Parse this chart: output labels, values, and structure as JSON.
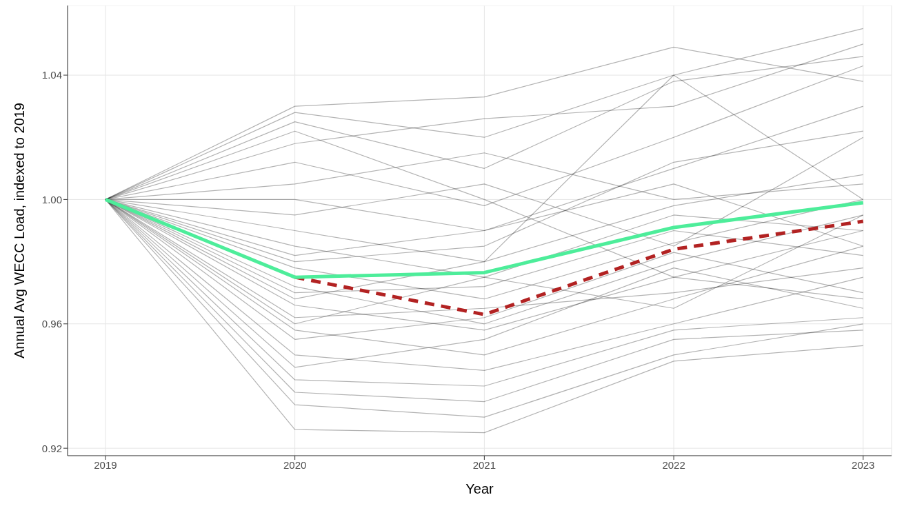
{
  "chart_data": {
    "type": "line",
    "xlabel": "Year",
    "ylabel": "Annual Avg WECC Load, indexed to 2019",
    "x": [
      2019,
      2020,
      2021,
      2022,
      2023
    ],
    "xlim": [
      2018.8,
      2023.15
    ],
    "xticks": [
      2019,
      2020,
      2021,
      2022,
      2023
    ],
    "ylim": [
      0.9176,
      1.0624
    ],
    "yticks": [
      {
        "value": 0.92,
        "label": "0.92"
      },
      {
        "value": 0.96,
        "label": "0.96"
      },
      {
        "value": 1.0,
        "label": "1.00"
      },
      {
        "value": 1.04,
        "label": "1.04"
      }
    ],
    "grid": true,
    "legend": false,
    "marker": "none",
    "series": [
      {
        "color": "#000000",
        "values": [
          1.0,
          1.03,
          1.033,
          1.049,
          1.038
        ]
      },
      {
        "color": "#000000",
        "values": [
          1.0,
          1.028,
          1.02,
          1.04,
          1.055
        ]
      },
      {
        "color": "#000000",
        "values": [
          1.0,
          1.025,
          1.01,
          1.038,
          1.046
        ]
      },
      {
        "color": "#000000",
        "values": [
          1.0,
          1.018,
          1.026,
          1.03,
          1.05
        ]
      },
      {
        "color": "#000000",
        "values": [
          1.0,
          1.012,
          0.998,
          1.02,
          1.043
        ]
      },
      {
        "color": "#000000",
        "values": [
          1.0,
          1.005,
          1.015,
          1.0,
          1.005
        ]
      },
      {
        "color": "#000000",
        "values": [
          1.0,
          1.0,
          0.99,
          1.01,
          1.03
        ]
      },
      {
        "color": "#000000",
        "values": [
          1.0,
          0.995,
          1.005,
          0.985,
          1.02
        ]
      },
      {
        "color": "#000000",
        "values": [
          1.0,
          0.99,
          0.98,
          0.998,
          1.008
        ]
      },
      {
        "color": "#000000",
        "values": [
          1.0,
          0.985,
          0.975,
          0.995,
          0.99
        ]
      },
      {
        "color": "#000000",
        "values": [
          1.0,
          0.982,
          0.99,
          1.005,
          0.985
        ]
      },
      {
        "color": "#000000",
        "values": [
          1.0,
          0.978,
          0.968,
          0.986,
          1.0
        ]
      },
      {
        "color": "#000000",
        "values": [
          1.0,
          0.972,
          0.96,
          0.98,
          0.995
        ]
      },
      {
        "color": "#000000",
        "values": [
          1.0,
          0.97,
          0.972,
          0.99,
          0.982
        ]
      },
      {
        "color": "#000000",
        "values": [
          1.0,
          0.966,
          0.958,
          0.975,
          0.99
        ]
      },
      {
        "color": "#000000",
        "values": [
          1.0,
          0.962,
          0.965,
          0.97,
          0.978
        ]
      },
      {
        "color": "#000000",
        "values": [
          1.0,
          0.958,
          0.95,
          0.968,
          0.985
        ]
      },
      {
        "color": "#000000",
        "values": [
          1.0,
          0.955,
          0.962,
          0.983,
          0.97
        ]
      },
      {
        "color": "#000000",
        "values": [
          1.0,
          0.95,
          0.945,
          0.96,
          0.975
        ]
      },
      {
        "color": "#000000",
        "values": [
          1.0,
          0.946,
          0.955,
          0.978,
          0.965
        ]
      },
      {
        "color": "#000000",
        "values": [
          1.0,
          0.942,
          0.94,
          0.958,
          0.962
        ]
      },
      {
        "color": "#000000",
        "values": [
          1.0,
          0.938,
          0.935,
          0.955,
          0.958
        ]
      },
      {
        "color": "#000000",
        "values": [
          1.0,
          0.934,
          0.93,
          0.95,
          0.96
        ]
      },
      {
        "color": "#000000",
        "values": [
          1.0,
          0.926,
          0.925,
          0.948,
          0.953
        ]
      },
      {
        "color": "#000000",
        "values": [
          1.0,
          0.98,
          0.985,
          1.012,
          1.022
        ]
      },
      {
        "color": "#000000",
        "values": [
          1.0,
          0.968,
          0.98,
          1.04,
          1.0
        ]
      },
      {
        "color": "#000000",
        "values": [
          1.0,
          1.022,
          1.0,
          0.975,
          0.968
        ]
      },
      {
        "color": "#000000",
        "values": [
          1.0,
          0.96,
          0.975,
          0.965,
          0.995
        ]
      },
      {
        "color": "#b22222",
        "line_style": "dashed",
        "values": [
          null,
          0.975,
          0.963,
          0.984,
          0.993
        ]
      },
      {
        "color": "#4ded9a",
        "line_style": "solid",
        "values": [
          1.0,
          0.975,
          0.9765,
          0.991,
          0.999
        ]
      }
    ]
  }
}
